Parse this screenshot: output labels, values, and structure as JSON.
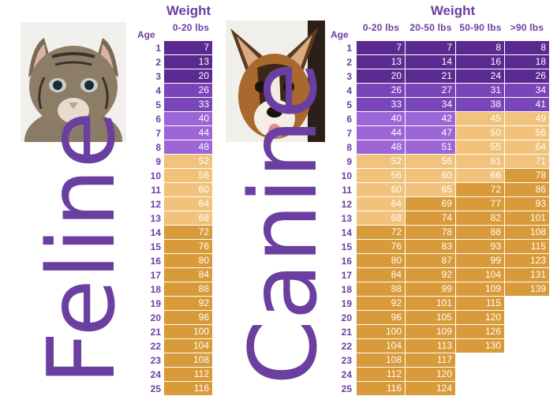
{
  "feline": {
    "label": "Feline",
    "weight_title": "Weight",
    "age_label": "Age",
    "ranges": [
      "0-20 lbs"
    ],
    "ages": [
      "1",
      "2",
      "3",
      "4",
      "5",
      "6",
      "7",
      "8",
      "9",
      "10",
      "11",
      "12",
      "13",
      "14",
      "15",
      "16",
      "17",
      "18",
      "19",
      "20",
      "21",
      "22",
      "23",
      "24",
      "25"
    ],
    "rows": [
      [
        "7"
      ],
      [
        "13"
      ],
      [
        "20"
      ],
      [
        "26"
      ],
      [
        "33"
      ],
      [
        "40"
      ],
      [
        "44"
      ],
      [
        "48"
      ],
      [
        "52"
      ],
      [
        "56"
      ],
      [
        "60"
      ],
      [
        "64"
      ],
      [
        "68"
      ],
      [
        "72"
      ],
      [
        "76"
      ],
      [
        "80"
      ],
      [
        "84"
      ],
      [
        "88"
      ],
      [
        "92"
      ],
      [
        "96"
      ],
      [
        "100"
      ],
      [
        "104"
      ],
      [
        "108"
      ],
      [
        "112"
      ],
      [
        "116"
      ]
    ]
  },
  "canine": {
    "label": "Canine",
    "weight_title": "Weight",
    "age_label": "Age",
    "ranges": [
      "0-20 lbs",
      "20-50 lbs",
      "50-90 lbs",
      ">90 lbs"
    ],
    "ages": [
      "1",
      "2",
      "3",
      "4",
      "5",
      "6",
      "7",
      "8",
      "9",
      "10",
      "11",
      "12",
      "13",
      "14",
      "15",
      "16",
      "17",
      "18",
      "19",
      "20",
      "21",
      "22",
      "23",
      "24",
      "25"
    ],
    "rows": [
      [
        "7",
        "7",
        "8",
        "8"
      ],
      [
        "13",
        "14",
        "16",
        "18"
      ],
      [
        "20",
        "21",
        "24",
        "26"
      ],
      [
        "26",
        "27",
        "31",
        "34"
      ],
      [
        "33",
        "34",
        "38",
        "41"
      ],
      [
        "40",
        "42",
        "45",
        "49"
      ],
      [
        "44",
        "47",
        "50",
        "56"
      ],
      [
        "48",
        "51",
        "55",
        "64"
      ],
      [
        "52",
        "56",
        "61",
        "71"
      ],
      [
        "56",
        "60",
        "66",
        "78"
      ],
      [
        "60",
        "65",
        "72",
        "86"
      ],
      [
        "64",
        "69",
        "77",
        "93"
      ],
      [
        "68",
        "74",
        "82",
        "101"
      ],
      [
        "72",
        "78",
        "88",
        "108"
      ],
      [
        "76",
        "83",
        "93",
        "115"
      ],
      [
        "80",
        "87",
        "99",
        "123"
      ],
      [
        "84",
        "92",
        "104",
        "131"
      ],
      [
        "88",
        "99",
        "109",
        "139"
      ],
      [
        "92",
        "101",
        "115",
        ""
      ],
      [
        "96",
        "105",
        "120",
        ""
      ],
      [
        "100",
        "109",
        "126",
        ""
      ],
      [
        "104",
        "113",
        "130",
        ""
      ],
      [
        "108",
        "117",
        "",
        ""
      ],
      [
        "112",
        "120",
        "",
        ""
      ],
      [
        "116",
        "124",
        "",
        ""
      ]
    ]
  },
  "colors": {
    "dark_purple": "#5a2a90",
    "mid_purple": "#7a45b8",
    "light_purple": "#9c66d6",
    "sand": "#f1c27c",
    "amber": "#d99a39",
    "title_purple": "#6b3fa0"
  }
}
